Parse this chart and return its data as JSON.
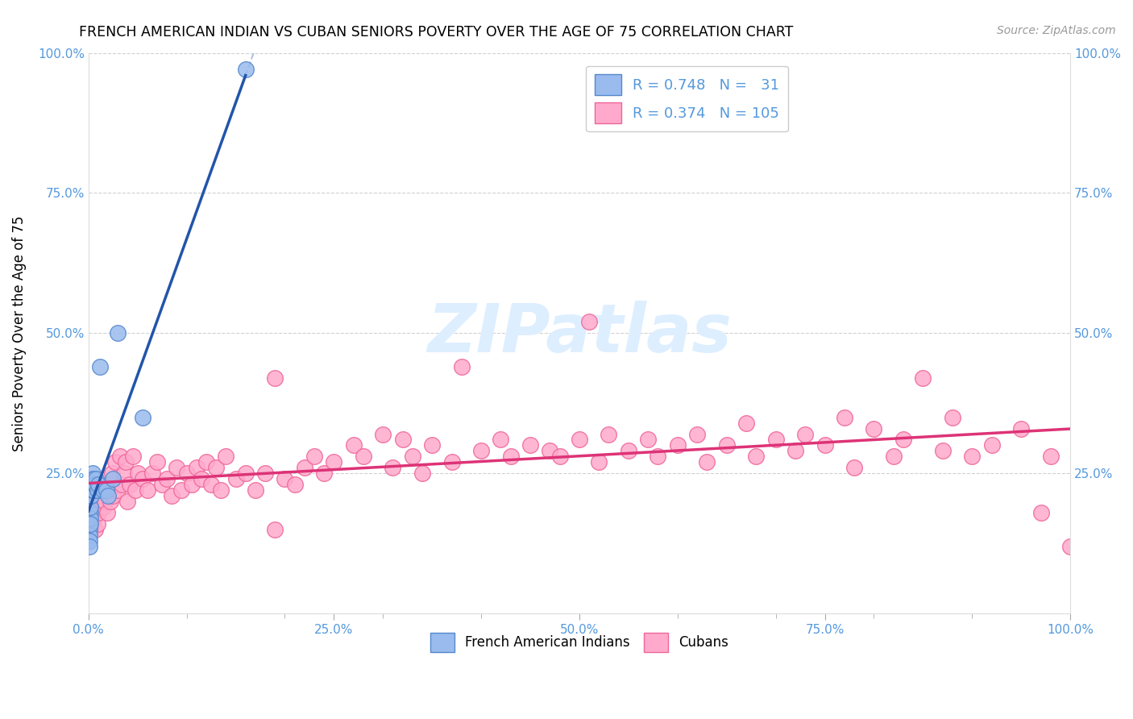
{
  "title": "FRENCH AMERICAN INDIAN VS CUBAN SENIORS POVERTY OVER THE AGE OF 75 CORRELATION CHART",
  "source": "Source: ZipAtlas.com",
  "ylabel": "Seniors Poverty Over the Age of 75",
  "xlim": [
    0,
    1.0
  ],
  "ylim": [
    0,
    1.0
  ],
  "xtick_vals": [
    0,
    0.25,
    0.5,
    0.75,
    1.0
  ],
  "ytick_vals": [
    0,
    0.25,
    0.5,
    0.75,
    1.0
  ],
  "blue_R": 0.748,
  "blue_N": 31,
  "pink_R": 0.374,
  "pink_N": 105,
  "blue_fill_color": "#99BBEE",
  "blue_edge_color": "#5588CC",
  "pink_fill_color": "#FFAACC",
  "pink_edge_color": "#EE6699",
  "blue_line_color": "#2255AA",
  "pink_line_color": "#DD3377",
  "dash_color": "#AABBDD",
  "watermark_color": "#DDEEFF",
  "grid_color": "#CCCCCC",
  "tick_label_color": "#5599DD",
  "blue_x": [
    0.001,
    0.001,
    0.001,
    0.001,
    0.001,
    0.001,
    0.002,
    0.002,
    0.002,
    0.002,
    0.002,
    0.003,
    0.003,
    0.003,
    0.004,
    0.004,
    0.005,
    0.005,
    0.006,
    0.007,
    0.008,
    0.009,
    0.01,
    0.012,
    0.015,
    0.018,
    0.02,
    0.025,
    0.03,
    0.055,
    0.16
  ],
  "blue_y": [
    0.17,
    0.16,
    0.15,
    0.14,
    0.13,
    0.12,
    0.18,
    0.17,
    0.16,
    0.19,
    0.21,
    0.22,
    0.21,
    0.24,
    0.22,
    0.25,
    0.22,
    0.24,
    0.23,
    0.23,
    0.24,
    0.22,
    0.23,
    0.44,
    0.22,
    0.22,
    0.21,
    0.24,
    0.5,
    0.35,
    0.97
  ],
  "pink_x": [
    0.005,
    0.006,
    0.007,
    0.008,
    0.009,
    0.01,
    0.012,
    0.013,
    0.015,
    0.016,
    0.017,
    0.018,
    0.019,
    0.02,
    0.022,
    0.024,
    0.025,
    0.027,
    0.03,
    0.032,
    0.034,
    0.036,
    0.038,
    0.04,
    0.042,
    0.045,
    0.048,
    0.05,
    0.055,
    0.06,
    0.065,
    0.07,
    0.075,
    0.08,
    0.085,
    0.09,
    0.095,
    0.1,
    0.105,
    0.11,
    0.115,
    0.12,
    0.125,
    0.13,
    0.135,
    0.14,
    0.15,
    0.16,
    0.17,
    0.18,
    0.19,
    0.2,
    0.21,
    0.22,
    0.23,
    0.24,
    0.25,
    0.27,
    0.28,
    0.3,
    0.31,
    0.32,
    0.33,
    0.34,
    0.35,
    0.37,
    0.38,
    0.4,
    0.42,
    0.43,
    0.45,
    0.47,
    0.48,
    0.5,
    0.52,
    0.53,
    0.55,
    0.57,
    0.58,
    0.6,
    0.62,
    0.63,
    0.65,
    0.67,
    0.68,
    0.7,
    0.72,
    0.73,
    0.75,
    0.77,
    0.78,
    0.8,
    0.82,
    0.83,
    0.85,
    0.87,
    0.88,
    0.9,
    0.92,
    0.95,
    0.97,
    0.98,
    1.0,
    0.51,
    0.19
  ],
  "pink_y": [
    0.17,
    0.18,
    0.15,
    0.19,
    0.16,
    0.18,
    0.2,
    0.22,
    0.19,
    0.21,
    0.2,
    0.22,
    0.18,
    0.23,
    0.2,
    0.25,
    0.21,
    0.27,
    0.22,
    0.28,
    0.23,
    0.25,
    0.27,
    0.2,
    0.23,
    0.28,
    0.22,
    0.25,
    0.24,
    0.22,
    0.25,
    0.27,
    0.23,
    0.24,
    0.21,
    0.26,
    0.22,
    0.25,
    0.23,
    0.26,
    0.24,
    0.27,
    0.23,
    0.26,
    0.22,
    0.28,
    0.24,
    0.25,
    0.22,
    0.25,
    0.15,
    0.24,
    0.23,
    0.26,
    0.28,
    0.25,
    0.27,
    0.3,
    0.28,
    0.32,
    0.26,
    0.31,
    0.28,
    0.25,
    0.3,
    0.27,
    0.44,
    0.29,
    0.31,
    0.28,
    0.3,
    0.29,
    0.28,
    0.31,
    0.27,
    0.32,
    0.29,
    0.31,
    0.28,
    0.3,
    0.32,
    0.27,
    0.3,
    0.34,
    0.28,
    0.31,
    0.29,
    0.32,
    0.3,
    0.35,
    0.26,
    0.33,
    0.28,
    0.31,
    0.42,
    0.29,
    0.35,
    0.28,
    0.3,
    0.33,
    0.18,
    0.28,
    0.12,
    0.52,
    0.42
  ]
}
